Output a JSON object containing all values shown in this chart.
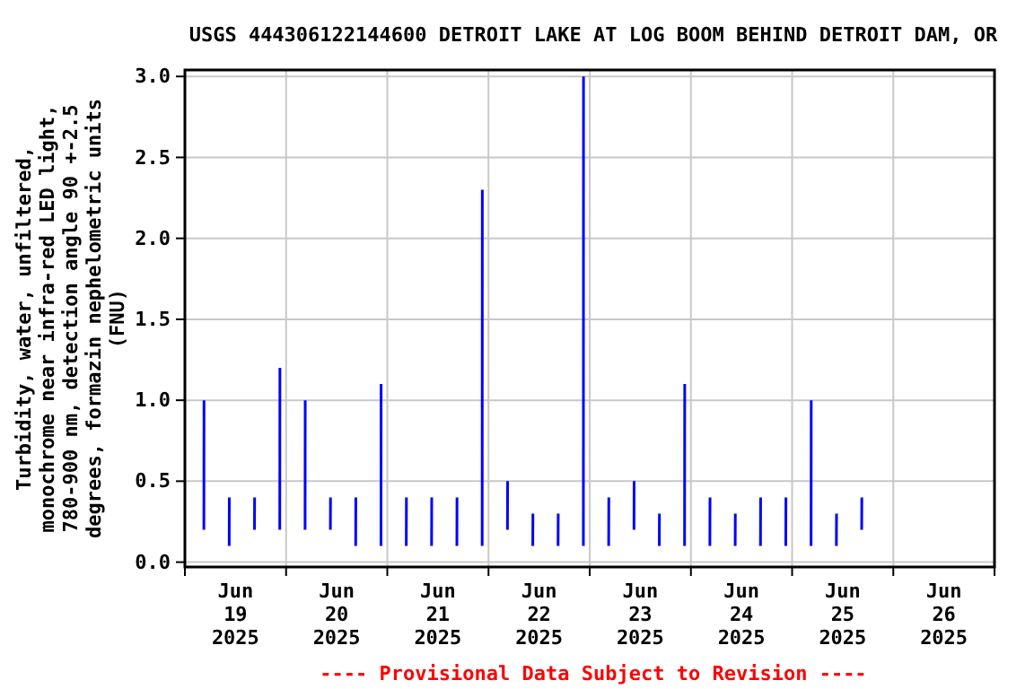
{
  "chart_data": {
    "type": "line",
    "title": "USGS 444306122144600 DETROIT LAKE AT LOG BOOM BEHIND DETROIT DAM, OR",
    "ylabel": "Turbidity, water, unfiltered,\nmonochrome near infra-red LED light,\n780-900 nm, detection angle 90 +-2.5\ndegrees, formazin nephelometric units\n(FNU)",
    "annotations": [
      "---- Provisional Data Subject to Revision ----"
    ],
    "xlim": [
      "2025-06-19T00:00",
      "2025-06-27T00:00"
    ],
    "xticks": [
      {
        "value": "2025-06-19T00:00",
        "label": null
      },
      {
        "value": "2025-06-19T12:00",
        "label": "Jun\n19\n2025"
      },
      {
        "value": "2025-06-20T00:00",
        "label": null
      },
      {
        "value": "2025-06-20T12:00",
        "label": "Jun\n20\n2025"
      },
      {
        "value": "2025-06-21T00:00",
        "label": null
      },
      {
        "value": "2025-06-21T12:00",
        "label": "Jun\n21\n2025"
      },
      {
        "value": "2025-06-22T00:00",
        "label": null
      },
      {
        "value": "2025-06-22T12:00",
        "label": "Jun\n22\n2025"
      },
      {
        "value": "2025-06-23T00:00",
        "label": null
      },
      {
        "value": "2025-06-23T12:00",
        "label": "Jun\n23\n2025"
      },
      {
        "value": "2025-06-24T00:00",
        "label": null
      },
      {
        "value": "2025-06-24T12:00",
        "label": "Jun\n24\n2025"
      },
      {
        "value": "2025-06-25T00:00",
        "label": null
      },
      {
        "value": "2025-06-25T12:00",
        "label": "Jun\n25\n2025"
      },
      {
        "value": "2025-06-26T00:00",
        "label": null
      },
      {
        "value": "2025-06-26T12:00",
        "label": "Jun\n26\n2025"
      },
      {
        "value": "2025-06-27T00:00",
        "label": null
      }
    ],
    "ylim": [
      -0.03,
      3.04
    ],
    "yticks": [
      {
        "value": 0,
        "label": "0.0"
      },
      {
        "value": 0.5,
        "label": "0.5"
      },
      {
        "value": 1,
        "label": "1.0"
      },
      {
        "value": 1.5,
        "label": "1.5"
      },
      {
        "value": 2,
        "label": "2.0"
      },
      {
        "value": 2.5,
        "label": "2.5"
      },
      {
        "value": 3,
        "label": "3.0"
      }
    ],
    "grid": true,
    "line_style": "solid",
    "marker": "none",
    "series": [
      {
        "color": "#0000ff",
        "x": [
          "2025-06-19T04:30",
          "2025-06-19T04:32",
          "2025-06-19T04:50",
          "2025-06-19T10:30",
          "2025-06-19T10:32",
          "2025-06-19T10:50",
          "2025-06-19T16:30",
          "2025-06-19T16:32",
          "2025-06-19T16:50",
          "2025-06-19T22:30",
          "2025-06-19T22:32",
          "2025-06-19T22:50",
          "2025-06-20T04:30",
          "2025-06-20T04:32",
          "2025-06-20T04:50",
          "2025-06-20T10:30",
          "2025-06-20T10:32",
          "2025-06-20T10:50",
          "2025-06-20T16:30",
          "2025-06-20T16:32",
          "2025-06-20T16:50",
          "2025-06-20T22:30",
          "2025-06-20T22:32",
          "2025-06-20T22:50",
          "2025-06-21T04:30",
          "2025-06-21T04:32",
          "2025-06-21T04:50",
          "2025-06-21T10:30",
          "2025-06-21T10:32",
          "2025-06-21T10:50",
          "2025-06-21T16:30",
          "2025-06-21T16:32",
          "2025-06-21T16:50",
          "2025-06-21T22:30",
          "2025-06-21T22:32",
          "2025-06-21T22:50",
          "2025-06-22T04:30",
          "2025-06-22T04:32",
          "2025-06-22T04:50",
          "2025-06-22T10:30",
          "2025-06-22T10:32",
          "2025-06-22T10:50",
          "2025-06-22T16:30",
          "2025-06-22T16:32",
          "2025-06-22T16:50",
          "2025-06-22T22:30",
          "2025-06-22T22:32",
          "2025-06-22T22:50",
          "2025-06-23T04:30",
          "2025-06-23T04:32",
          "2025-06-23T04:50",
          "2025-06-23T10:30",
          "2025-06-23T10:32",
          "2025-06-23T10:50",
          "2025-06-23T16:30",
          "2025-06-23T16:32",
          "2025-06-23T16:50",
          "2025-06-23T22:30",
          "2025-06-23T22:32",
          "2025-06-23T22:50",
          "2025-06-24T04:30",
          "2025-06-24T04:32",
          "2025-06-24T04:50",
          "2025-06-24T10:30",
          "2025-06-24T10:32",
          "2025-06-24T10:50",
          "2025-06-24T16:30",
          "2025-06-24T16:32",
          "2025-06-24T16:50",
          "2025-06-24T22:30",
          "2025-06-24T22:32",
          "2025-06-24T22:50",
          "2025-06-25T04:30",
          "2025-06-25T04:32",
          "2025-06-25T04:50",
          "2025-06-25T10:30",
          "2025-06-25T10:32",
          "2025-06-25T10:50",
          "2025-06-25T16:30",
          "2025-06-25T16:32"
        ],
        "values": [
          0.2,
          1.0,
          null,
          0.1,
          0.4,
          null,
          0.2,
          0.4,
          null,
          0.2,
          1.2,
          null,
          0.2,
          1.0,
          null,
          0.2,
          0.4,
          null,
          0.1,
          0.4,
          null,
          0.1,
          1.1,
          null,
          0.1,
          0.4,
          null,
          0.1,
          0.4,
          null,
          0.1,
          0.4,
          null,
          0.1,
          2.3,
          null,
          0.2,
          0.5,
          null,
          0.1,
          0.3,
          null,
          0.1,
          0.3,
          null,
          0.1,
          3.0,
          null,
          0.1,
          0.4,
          null,
          0.2,
          0.5,
          null,
          0.1,
          0.3,
          null,
          0.1,
          1.1,
          null,
          0.1,
          0.4,
          null,
          0.1,
          0.3,
          null,
          0.1,
          0.4,
          null,
          0.1,
          0.4,
          null,
          0.1,
          1.0,
          null,
          0.1,
          0.3,
          null,
          0.2,
          0.4
        ]
      }
    ]
  }
}
